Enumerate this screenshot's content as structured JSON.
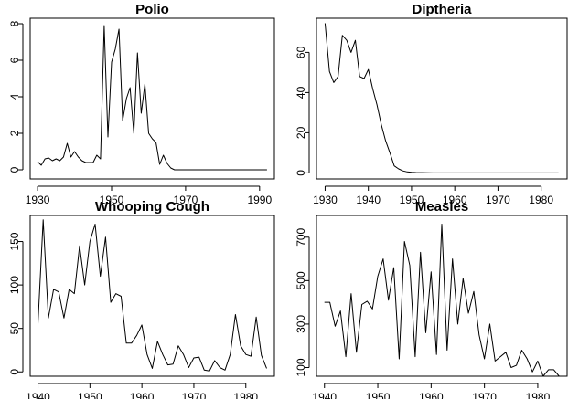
{
  "chart_data": [
    {
      "type": "line",
      "title": "Polio",
      "xlim": [
        1928,
        1994
      ],
      "ylim": [
        -0.5,
        8.3
      ],
      "xticks": [
        1930,
        1950,
        1970,
        1990
      ],
      "yticks": [
        0,
        2,
        4,
        6,
        8
      ],
      "series": [
        {
          "x": [
            1930,
            1931,
            1932,
            1933,
            1934,
            1935,
            1936,
            1937,
            1938,
            1939,
            1940,
            1941,
            1942,
            1943,
            1944,
            1945,
            1946,
            1947,
            1948,
            1949,
            1950,
            1951,
            1952,
            1953,
            1954,
            1955,
            1956,
            1957,
            1958,
            1959,
            1960,
            1961,
            1962,
            1963,
            1964,
            1965,
            1966,
            1967,
            1968,
            1969,
            1970,
            1975,
            1980,
            1985,
            1990,
            1992
          ],
          "y": [
            0.45,
            0.25,
            0.6,
            0.65,
            0.5,
            0.6,
            0.5,
            0.7,
            1.45,
            0.7,
            1.0,
            0.7,
            0.5,
            0.4,
            0.4,
            0.4,
            0.8,
            0.6,
            7.9,
            1.8,
            5.9,
            6.6,
            7.7,
            2.7,
            3.9,
            4.5,
            2.0,
            6.4,
            3.1,
            4.7,
            2.0,
            1.7,
            1.5,
            0.3,
            0.8,
            0.35,
            0.1,
            0.0,
            0.0,
            0.0,
            0.0,
            0.0,
            0.0,
            0.0,
            0.0,
            0.0
          ]
        }
      ]
    },
    {
      "type": "line",
      "title": "Diptheria",
      "xlim": [
        1928,
        1986
      ],
      "ylim": [
        -3,
        77
      ],
      "xticks": [
        1930,
        1940,
        1950,
        1960,
        1970,
        1980
      ],
      "yticks": [
        0,
        20,
        40,
        60
      ],
      "series": [
        {
          "x": [
            1930,
            1931,
            1932,
            1933,
            1934,
            1935,
            1936,
            1937,
            1938,
            1939,
            1940,
            1941,
            1942,
            1943,
            1944,
            1945,
            1946,
            1947,
            1948,
            1949,
            1950,
            1951,
            1955,
            1960,
            1965,
            1970,
            1975,
            1980,
            1984
          ],
          "y": [
            74.5,
            50.5,
            45,
            48,
            68.5,
            66,
            60,
            66,
            48,
            47,
            51.5,
            42,
            34,
            24,
            16,
            10,
            3.5,
            2,
            1,
            0.5,
            0.3,
            0.2,
            0,
            0,
            0,
            0,
            0,
            0,
            0
          ]
        }
      ]
    },
    {
      "type": "line",
      "title": "Whooping Cough",
      "xlim": [
        1938.5,
        1985.5
      ],
      "ylim": [
        -5,
        180
      ],
      "xticks": [
        1940,
        1950,
        1960,
        1970,
        1980
      ],
      "yticks": [
        0,
        50,
        100,
        150
      ],
      "series": [
        {
          "x": [
            1940,
            1941,
            1942,
            1943,
            1944,
            1945,
            1946,
            1947,
            1948,
            1949,
            1950,
            1951,
            1952,
            1953,
            1954,
            1955,
            1956,
            1957,
            1958,
            1959,
            1960,
            1961,
            1962,
            1963,
            1964,
            1965,
            1966,
            1967,
            1968,
            1969,
            1970,
            1971,
            1972,
            1973,
            1974,
            1975,
            1976,
            1977,
            1978,
            1979,
            1980,
            1981,
            1982,
            1983,
            1984
          ],
          "y": [
            55,
            175,
            62,
            95,
            92,
            62,
            95,
            90,
            145,
            100,
            150,
            170,
            110,
            155,
            80,
            90,
            87,
            33,
            33,
            42,
            54,
            20,
            4,
            35,
            20,
            8,
            9,
            30,
            20,
            5,
            16,
            17,
            2,
            1,
            13,
            5,
            2,
            20,
            66,
            30,
            20,
            18,
            63,
            19,
            4
          ]
        }
      ]
    },
    {
      "type": "line",
      "title": "Measles",
      "xlim": [
        1938.5,
        1985.5
      ],
      "ylim": [
        60,
        800
      ],
      "xticks": [
        1940,
        1950,
        1960,
        1970,
        1980
      ],
      "yticks": [
        100,
        300,
        500,
        700
      ],
      "series": [
        {
          "x": [
            1940,
            1941,
            1942,
            1943,
            1944,
            1945,
            1946,
            1947,
            1948,
            1949,
            1950,
            1951,
            1952,
            1953,
            1954,
            1955,
            1956,
            1957,
            1958,
            1959,
            1960,
            1961,
            1962,
            1963,
            1964,
            1965,
            1966,
            1967,
            1968,
            1969,
            1970,
            1971,
            1972,
            1973,
            1974,
            1975,
            1976,
            1977,
            1978,
            1979,
            1980,
            1981,
            1982,
            1983,
            1984
          ],
          "y": [
            400,
            400,
            290,
            360,
            150,
            440,
            170,
            390,
            405,
            370,
            520,
            600,
            410,
            560,
            140,
            680,
            570,
            150,
            630,
            260,
            540,
            160,
            760,
            180,
            600,
            300,
            510,
            350,
            450,
            250,
            140,
            300,
            130,
            150,
            170,
            100,
            110,
            180,
            140,
            80,
            130,
            60,
            90,
            90,
            60
          ]
        }
      ]
    }
  ]
}
